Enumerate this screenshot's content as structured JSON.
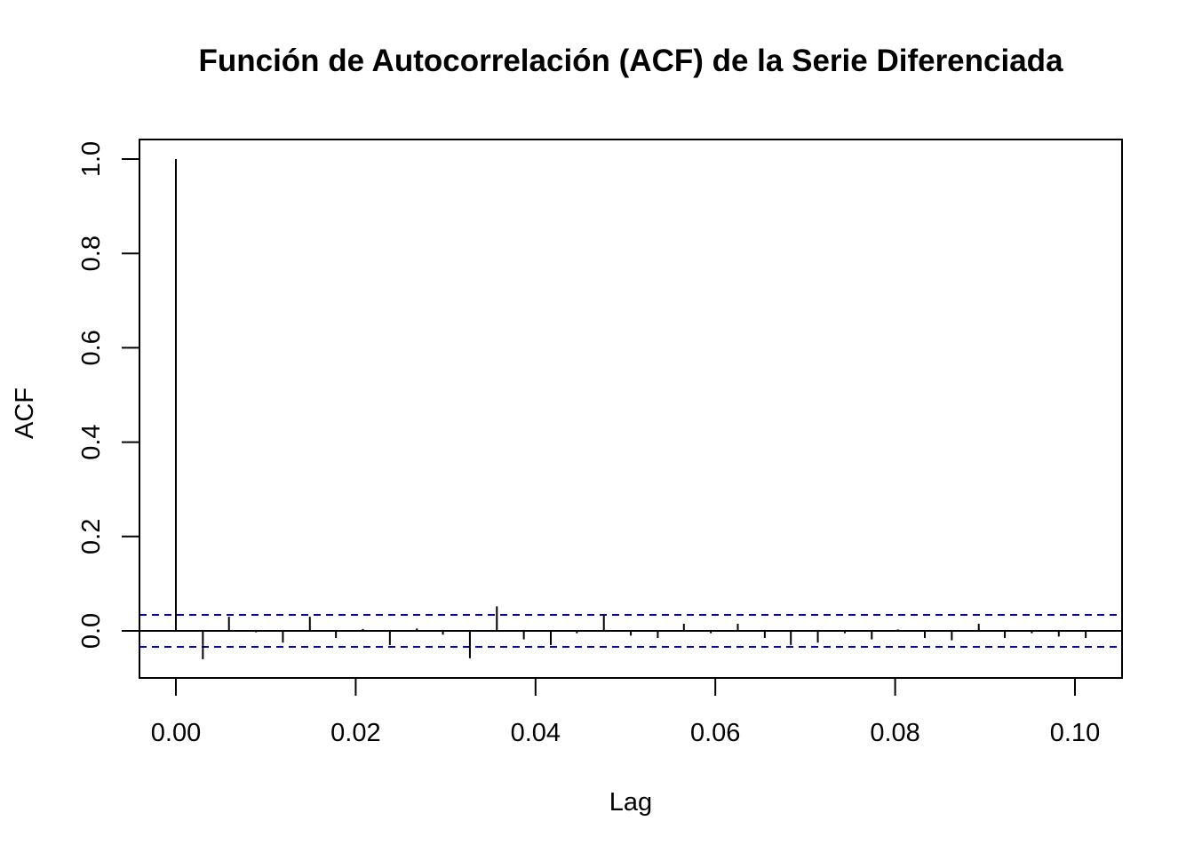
{
  "chart_data": {
    "type": "bar",
    "title": "Función de Autocorrelación (ACF) de la Serie Diferenciada",
    "xlabel": "Lag",
    "ylabel": "ACF",
    "xlim": [
      -0.0041,
      0.1054
    ],
    "ylim": [
      -0.1,
      1.04
    ],
    "x_ticks": [
      0.0,
      0.02,
      0.04,
      0.06,
      0.08,
      0.1
    ],
    "x_tick_labels": [
      "0.00",
      "0.02",
      "0.04",
      "0.06",
      "0.08",
      "0.10"
    ],
    "y_ticks": [
      0.0,
      0.2,
      0.4,
      0.6,
      0.8,
      1.0
    ],
    "y_tick_labels": [
      "0.0",
      "0.2",
      "0.4",
      "0.6",
      "0.8",
      "1.0"
    ],
    "grid": false,
    "confidence_band": {
      "upper": 0.034,
      "lower": -0.034,
      "color": "#0000cc",
      "style": "dashed"
    },
    "lags": [
      0.0,
      0.003,
      0.0059,
      0.0089,
      0.0119,
      0.0149,
      0.0178,
      0.0208,
      0.0238,
      0.0268,
      0.0297,
      0.0327,
      0.0357,
      0.0387,
      0.0417,
      0.0446,
      0.0476,
      0.0506,
      0.0536,
      0.0565,
      0.0595,
      0.0625,
      0.0655,
      0.0684,
      0.0714,
      0.0744,
      0.0774,
      0.0803,
      0.0833,
      0.0863,
      0.0893,
      0.0922,
      0.0952,
      0.0982,
      0.1012
    ],
    "values": [
      1.0,
      -0.06,
      0.03,
      -0.003,
      -0.025,
      0.03,
      -0.015,
      0.004,
      -0.03,
      0.005,
      -0.008,
      -0.058,
      0.052,
      -0.018,
      -0.03,
      -0.005,
      0.035,
      -0.01,
      -0.015,
      0.015,
      -0.005,
      0.015,
      -0.015,
      -0.03,
      -0.025,
      -0.005,
      -0.018,
      0.003,
      -0.015,
      -0.02,
      0.015,
      -0.015,
      -0.005,
      -0.012,
      -0.015
    ]
  }
}
